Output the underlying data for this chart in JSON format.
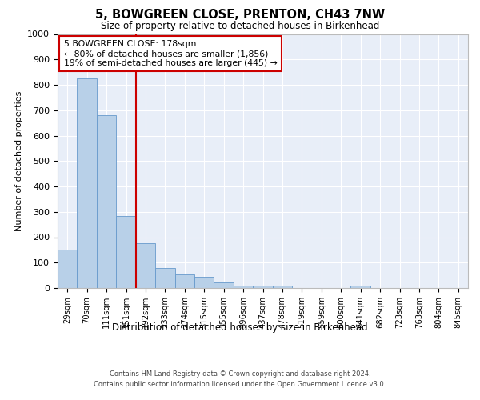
{
  "title": "5, BOWGREEN CLOSE, PRENTON, CH43 7NW",
  "subtitle": "Size of property relative to detached houses in Birkenhead",
  "xlabel": "Distribution of detached houses by size in Birkenhead",
  "ylabel": "Number of detached properties",
  "categories": [
    "29sqm",
    "70sqm",
    "111sqm",
    "151sqm",
    "192sqm",
    "233sqm",
    "274sqm",
    "315sqm",
    "355sqm",
    "396sqm",
    "437sqm",
    "478sqm",
    "519sqm",
    "559sqm",
    "600sqm",
    "641sqm",
    "682sqm",
    "723sqm",
    "763sqm",
    "804sqm",
    "845sqm"
  ],
  "values": [
    150,
    825,
    680,
    285,
    175,
    78,
    53,
    45,
    22,
    10,
    10,
    10,
    0,
    0,
    0,
    10,
    0,
    0,
    0,
    0,
    0
  ],
  "bar_color": "#b8d0e8",
  "bar_edge_color": "#6699cc",
  "vline_color": "#cc0000",
  "annotation_text": "5 BOWGREEN CLOSE: 178sqm\n← 80% of detached houses are smaller (1,856)\n19% of semi-detached houses are larger (445) →",
  "annotation_box_color": "#ffffff",
  "annotation_box_edge": "#cc0000",
  "ylim": [
    0,
    1000
  ],
  "yticks": [
    0,
    100,
    200,
    300,
    400,
    500,
    600,
    700,
    800,
    900,
    1000
  ],
  "background_color": "#ffffff",
  "plot_bg_color": "#e8eef8",
  "grid_color": "#ffffff",
  "footer_line1": "Contains HM Land Registry data © Crown copyright and database right 2024.",
  "footer_line2": "Contains public sector information licensed under the Open Government Licence v3.0."
}
